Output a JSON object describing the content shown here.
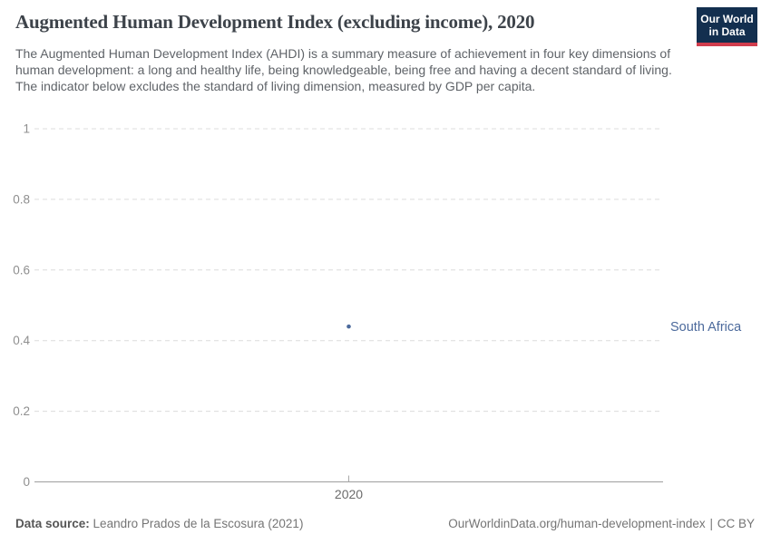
{
  "header": {
    "title": "Augmented Human Development Index (excluding income), 2020",
    "subtitle": "The Augmented Human Development Index (AHDI) is a summary measure of achievement in four key dimensions of human development: a long and healthy life, being knowledgeable, being free and having a decent standard of living. The indicator below excludes the standard of living dimension, measured by GDP per capita.",
    "logo": {
      "line1": "Our World",
      "line2": "in Data"
    }
  },
  "colors": {
    "accent": "#4c6a9c",
    "grid": "#dcdcdc",
    "axis": "#9e9e9e",
    "tick": "#a8a8a8",
    "y_tick_label": "#8f8f8f",
    "x_tick_label": "#6b6b6b",
    "logo_bg": "#132f4f",
    "logo_stripe": "#d13d4d"
  },
  "chart_data": {
    "type": "scatter",
    "title": "Augmented Human Development Index (excluding income), 2020",
    "xlabel": "",
    "ylabel": "",
    "xlim": [
      2019.5,
      2020.5
    ],
    "ylim": [
      0,
      1
    ],
    "x_ticks": [
      2020
    ],
    "y_ticks": [
      0,
      0.2,
      0.4,
      0.6,
      0.8,
      1
    ],
    "grid": "horizontal-dashed",
    "legend": "entity-label-right-of-plot",
    "series": [
      {
        "name": "South Africa",
        "x": [
          2020
        ],
        "y": [
          0.44
        ]
      }
    ]
  },
  "footer": {
    "left": {
      "label": "Data source:",
      "value": "Leandro Prados de la Escosura (2021)"
    },
    "right": {
      "link": "OurWorldinData.org/human-development-index",
      "separator": "|",
      "license": "CC BY"
    }
  }
}
